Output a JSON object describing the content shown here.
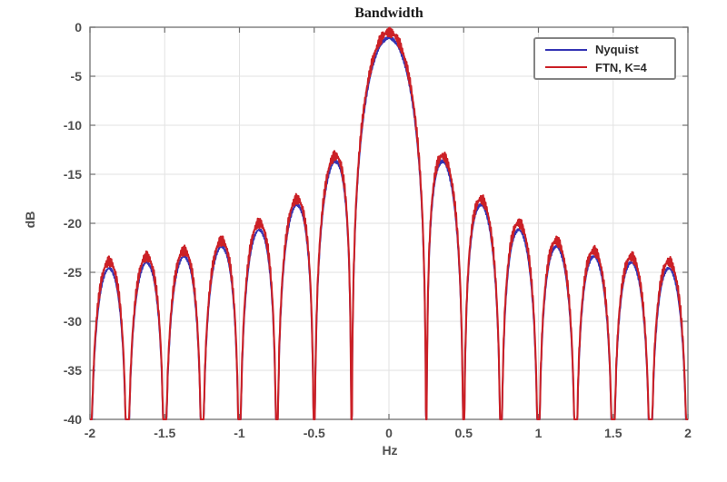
{
  "chart_data": {
    "type": "line",
    "title": "Bandwidth",
    "xlabel": "Hz",
    "ylabel": "dB",
    "xlim": [
      -2,
      2
    ],
    "ylim": [
      -40,
      0
    ],
    "xticks": [
      -2,
      -1.5,
      -1,
      -0.5,
      0,
      0.5,
      1,
      1.5,
      2
    ],
    "xtick_labels": [
      "-2",
      "-1.5",
      "-1",
      "-0.5",
      "0",
      "0.5",
      "1",
      "1.5",
      "2"
    ],
    "yticks": [
      0,
      -5,
      -10,
      -15,
      -20,
      -25,
      -30,
      -35,
      -40
    ],
    "ytick_labels": [
      "0",
      "-5",
      "-10",
      "-15",
      "-20",
      "-25",
      "-30",
      "-35",
      "-40"
    ],
    "grid": true,
    "null_spacing_hz": 0.25,
    "legend": {
      "position": "top-right",
      "entries": [
        "Nyquist",
        "FTN, K=4"
      ]
    },
    "series": [
      {
        "name": "Nyquist",
        "color": "#3434b4",
        "width": 1.7,
        "main_peak_db": -1.1,
        "sidelobe_peaks_db": [
          -13.9,
          -18.2,
          -20.7,
          -22.4,
          -23.4,
          -24.0,
          -24.6
        ],
        "ripple_db": 0.18
      },
      {
        "name": "FTN, K=4",
        "color": "#cb2026",
        "width": 2.1,
        "main_peak_db": -0.5,
        "sidelobe_peaks_db": [
          -13.3,
          -17.6,
          -20.0,
          -21.8,
          -22.8,
          -23.4,
          -23.9
        ],
        "ripple_db": 0.55
      }
    ],
    "colors": {
      "grid": "#e2e2e2",
      "axis_box": "#7a7a7a",
      "tick_label": "#4f4f4f",
      "legend_border": "#848484"
    }
  }
}
